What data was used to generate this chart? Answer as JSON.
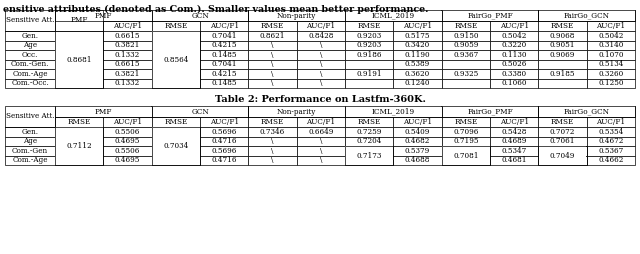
{
  "header_text": "ensitive attributes (denoted as Com.). Smaller values mean better performance.",
  "table2_title": "Table 2: Performance on Lastfm-360K.",
  "method_names": [
    "PMF",
    "GCN",
    "Non-parity",
    "ICML_2019",
    "FairGo_PMF",
    "FairGo_GCN"
  ],
  "table1": {
    "sensitive_attrs": [
      "Gen.",
      "Age",
      "Occ.",
      "Com.-Gen.",
      "Com.-Age",
      "Com.-Occ."
    ],
    "PMF_RMSE_merged": "0.8681",
    "GCN_RMSE_merged": "0.8564",
    "PMF_AUC": [
      "0.6615",
      "0.3821",
      "0.1332",
      "0.6615",
      "0.3821",
      "0.1332"
    ],
    "GCN_AUC": [
      "0.7041",
      "0.4215",
      "0.1485",
      "0.7041",
      "0.4215",
      "0.1485"
    ],
    "NP_RMSE": [
      "0.8621",
      "\\",
      "\\",
      "\\",
      "\\",
      "\\"
    ],
    "NP_AUC": [
      "0.8428",
      "\\",
      "\\",
      "\\",
      "\\",
      "\\"
    ],
    "ICML_RMSE": [
      "0.9203",
      "0.9203",
      "0.9186",
      "",
      "0.9191",
      ""
    ],
    "ICML_AUC": [
      "0.5175",
      "0.3420",
      "0.1190",
      "0.5389",
      "0.3620",
      "0.1240"
    ],
    "FGP_RMSE": [
      "0.9150",
      "0.9059",
      "0.9367",
      "",
      "0.9325",
      ""
    ],
    "FGP_AUC": [
      "0.5042",
      "0.3220",
      "0.1130",
      "0.5026",
      "0.3380",
      "0.1060"
    ],
    "FGG_RMSE": [
      "0.9068",
      "0.9051",
      "0.9069",
      "",
      "0.9185",
      ""
    ],
    "FGG_AUC": [
      "0.5042",
      "0.3140",
      "0.1070",
      "0.5134",
      "0.3260",
      "0.1250"
    ]
  },
  "table2": {
    "sensitive_attrs": [
      "Gen.",
      "Age",
      "Com.-Gen",
      "Com.-Age"
    ],
    "PMF_RMSE_merged": "0.7112",
    "GCN_RMSE_merged": "0.7034",
    "PMF_AUC": [
      "0.5506",
      "0.4695",
      "0.5506",
      "0.4695"
    ],
    "GCN_AUC": [
      "0.5696",
      "0.4716",
      "0.5696",
      "0.4716"
    ],
    "NP_RMSE": [
      "0.7346",
      "\\",
      "\\",
      "\\"
    ],
    "NP_AUC": [
      "0.6649",
      "\\",
      "\\",
      "\\"
    ],
    "ICML_RMSE": [
      "0.7259",
      "0.7204",
      "0.7173",
      "0.7173"
    ],
    "ICML_AUC": [
      "0.5409",
      "0.4682",
      "0.5379",
      "0.4688"
    ],
    "FGP_RMSE": [
      "0.7096",
      "0.7195",
      "0.7081",
      "0.7081"
    ],
    "FGP_AUC": [
      "0.5428",
      "0.4689",
      "0.5347",
      "0.4681"
    ],
    "FGG_RMSE": [
      "0.7072",
      "0.7061",
      "0.7049",
      "0.7049"
    ],
    "FGG_AUC": [
      "0.5354",
      "0.4672",
      "0.5367",
      "0.4662"
    ],
    "ICML_RMSE_merge_rows": [
      2,
      3
    ],
    "FGP_RMSE_merge_rows": [
      2,
      3
    ],
    "FGG_RMSE_merge_rows": [
      2,
      3
    ]
  },
  "fontsize": 5.2,
  "header_fontsize": 6.8,
  "title_fontsize": 7.0
}
